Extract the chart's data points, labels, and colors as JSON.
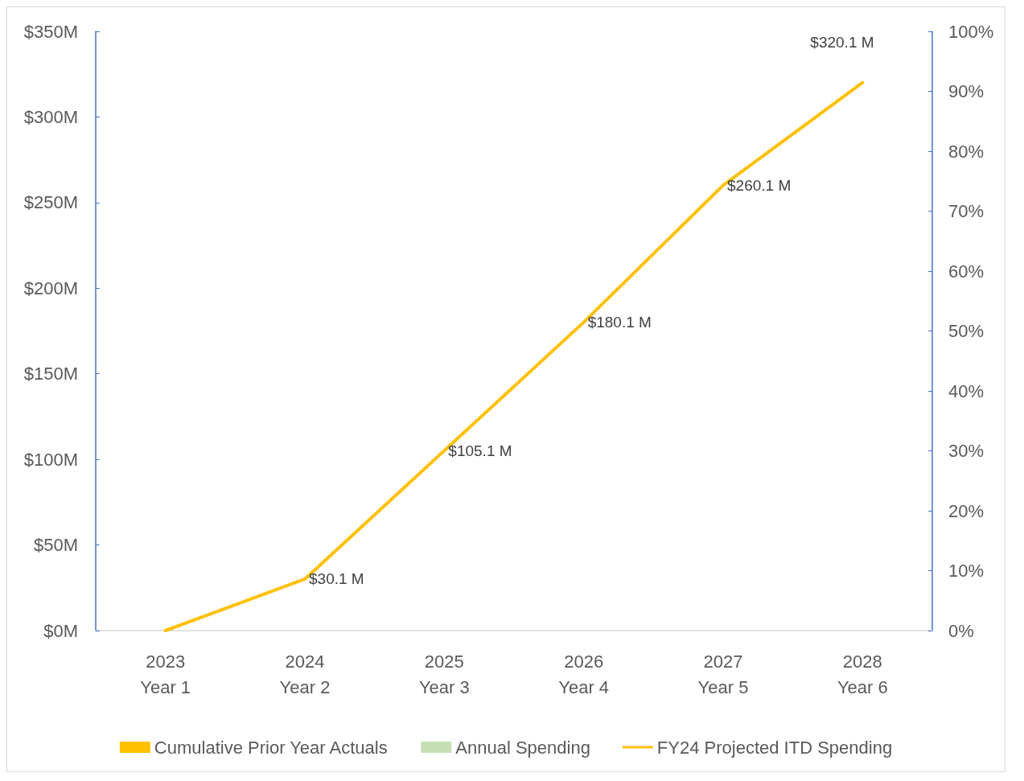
{
  "chart_data": {
    "type": "bar",
    "categories": [
      "2023\nYear 1",
      "2024\nYear 2",
      "2025\nYear 3",
      "2026\nYear 4",
      "2027\nYear 5",
      "2028\nYear 6"
    ],
    "series": [
      {
        "name": "Cumulative Prior Year Actuals",
        "color": "#ffc000",
        "values": [
          0,
          0,
          0,
          0,
          0,
          0
        ]
      },
      {
        "name": "Annual Spending",
        "color": "#c5e0b4",
        "values": [
          0,
          0,
          0,
          0,
          0,
          0
        ]
      },
      {
        "name": "FY24 Projected ITD Spending",
        "type": "line",
        "color": "#ffc000",
        "values": [
          0,
          30.1,
          105.1,
          180.1,
          260.1,
          320.1
        ],
        "value_labels": [
          null,
          "$30.1 M",
          "$105.1 M",
          "$180.1 M",
          "$260.1 M",
          "$320.1 M"
        ]
      }
    ],
    "ylim": [
      0,
      350
    ],
    "yticks": [
      {
        "value": 0,
        "label": "$0M"
      },
      {
        "value": 50,
        "label": "$50M"
      },
      {
        "value": 100,
        "label": "$100M"
      },
      {
        "value": 150,
        "label": "$150M"
      },
      {
        "value": 200,
        "label": "$200M"
      },
      {
        "value": 250,
        "label": "$250M"
      },
      {
        "value": 300,
        "label": "$300M"
      },
      {
        "value": 350,
        "label": "$350M"
      }
    ],
    "y2lim": [
      0,
      100
    ],
    "y2ticks": [
      {
        "value": 0,
        "label": "0%"
      },
      {
        "value": 10,
        "label": "10%"
      },
      {
        "value": 20,
        "label": "20%"
      },
      {
        "value": 30,
        "label": "30%"
      },
      {
        "value": 40,
        "label": "40%"
      },
      {
        "value": 50,
        "label": "50%"
      },
      {
        "value": 60,
        "label": "60%"
      },
      {
        "value": 70,
        "label": "70%"
      },
      {
        "value": 80,
        "label": "80%"
      },
      {
        "value": 90,
        "label": "90%"
      },
      {
        "value": 100,
        "label": "100%"
      }
    ],
    "grid": false,
    "legend": "bottom",
    "marker": "none",
    "line_style": "solid"
  }
}
